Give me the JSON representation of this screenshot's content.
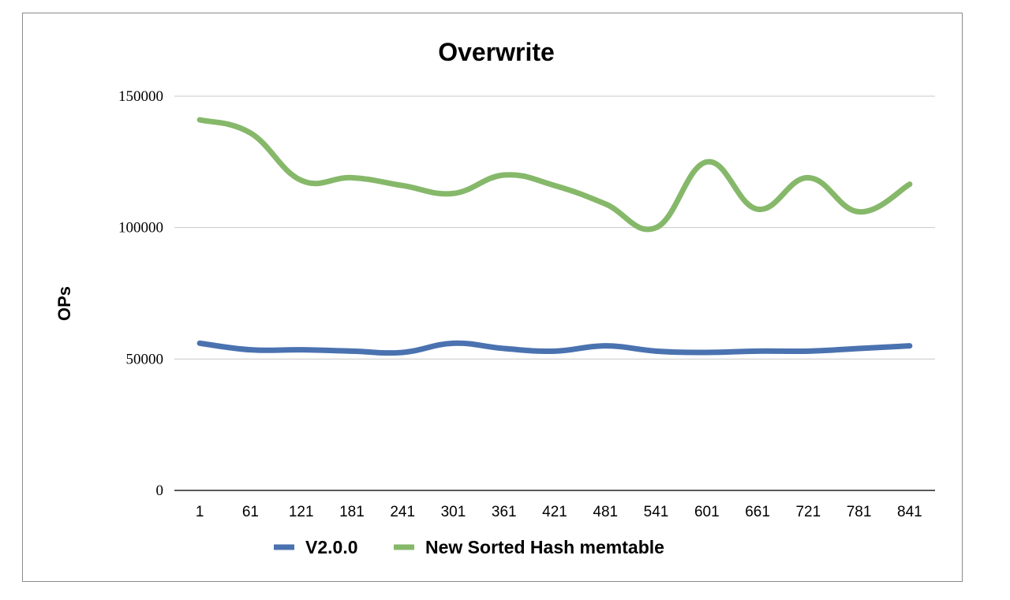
{
  "chart_data": {
    "type": "line",
    "title": "Overwrite",
    "xlabel": "",
    "ylabel": "OPs",
    "categories": [
      "1",
      "61",
      "121",
      "181",
      "241",
      "301",
      "361",
      "421",
      "481",
      "541",
      "601",
      "661",
      "721",
      "781",
      "841"
    ],
    "yticks": [
      "0",
      "50000",
      "100000",
      "150000"
    ],
    "ylim": [
      0,
      150000
    ],
    "grid": true,
    "legend": "bottom",
    "series": [
      {
        "name": "V2.0.0",
        "color": "#4a72b0",
        "values": [
          56000,
          53500,
          53500,
          53000,
          52500,
          56000,
          54000,
          53000,
          55000,
          53000,
          52500,
          53000,
          53000,
          54000,
          55000
        ]
      },
      {
        "name": "New Sorted Hash memtable",
        "color": "#86b86a",
        "values": [
          141000,
          136000,
          118000,
          119000,
          116000,
          113000,
          120000,
          116000,
          109000,
          100000,
          125000,
          107000,
          119000,
          106000,
          116500
        ]
      }
    ]
  }
}
